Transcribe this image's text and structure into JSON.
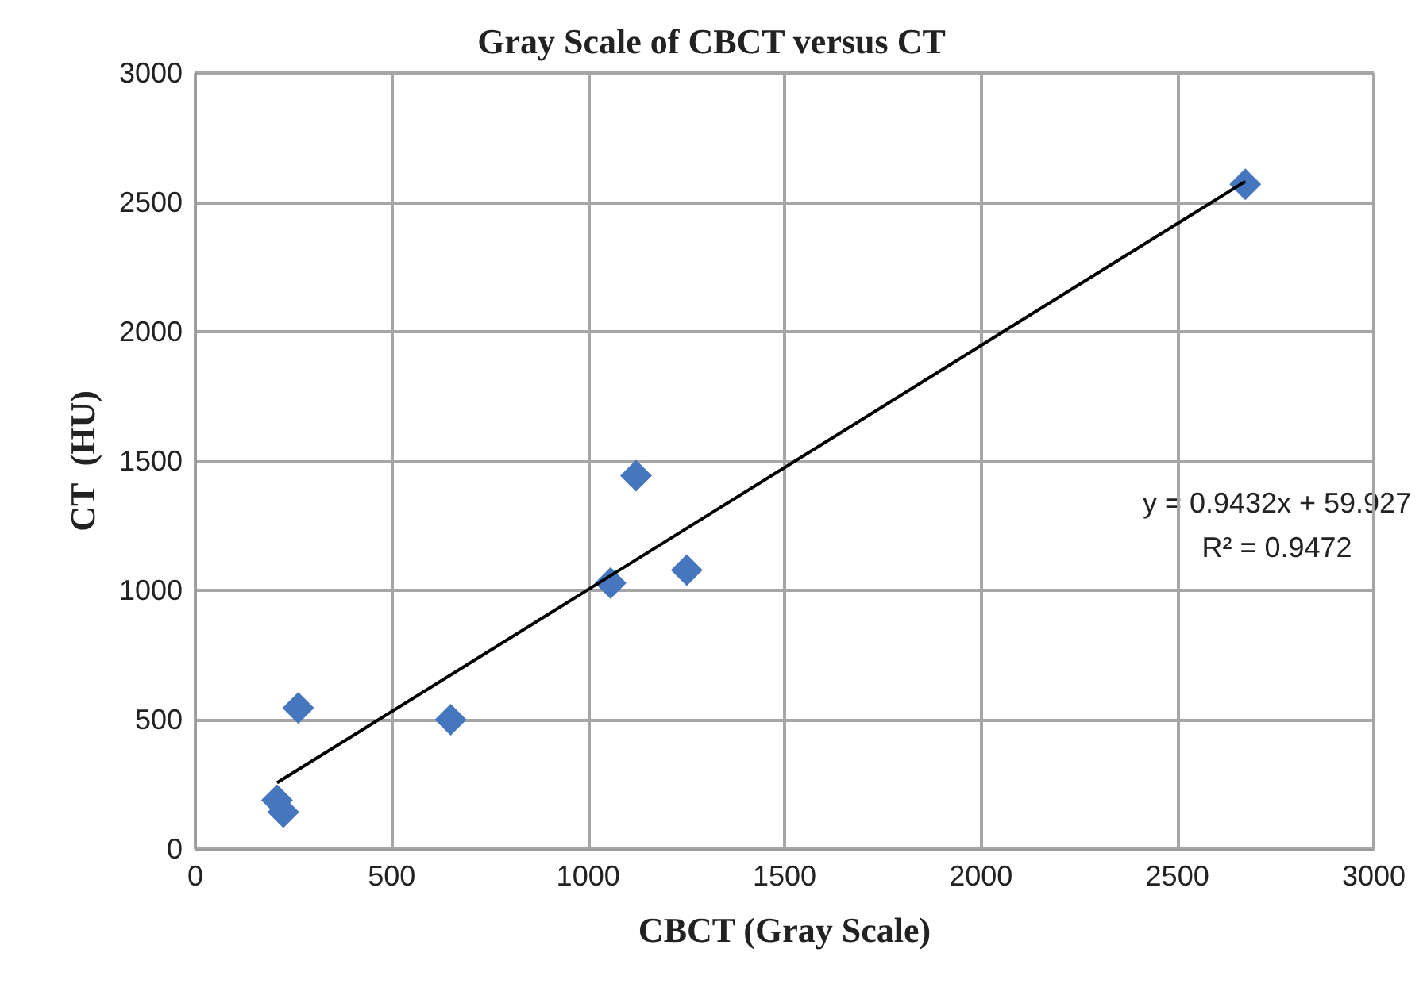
{
  "chart_data": {
    "type": "scatter",
    "title": "Gray Scale of CBCT versus CT",
    "xlabel": "CBCT (Gray Scale)",
    "ylabel": "CT  (HU)",
    "annotations": [
      "y = 0.9432x + 59.927",
      "R² = 0.9472"
    ],
    "series": [
      {
        "color": "#4677be",
        "marker": "diamond",
        "x": [
          208,
          224,
          262,
          650,
          1057,
          1122,
          1251,
          2673
        ],
        "values": [
          189,
          143,
          545,
          500,
          1028,
          1443,
          1078,
          2570
        ]
      },
      {
        "type": "line",
        "color": "#000000",
        "marker": "none",
        "x": [
          208,
          2673
        ],
        "values": [
          256,
          2581
        ]
      }
    ],
    "xlim": [
      0,
      3000
    ],
    "xticks": [
      0,
      500,
      1000,
      1500,
      2000,
      2500,
      3000
    ],
    "ylim": [
      0,
      3000
    ],
    "yticks": [
      0,
      500,
      1000,
      1500,
      2000,
      2500,
      3000
    ],
    "grid": true
  }
}
